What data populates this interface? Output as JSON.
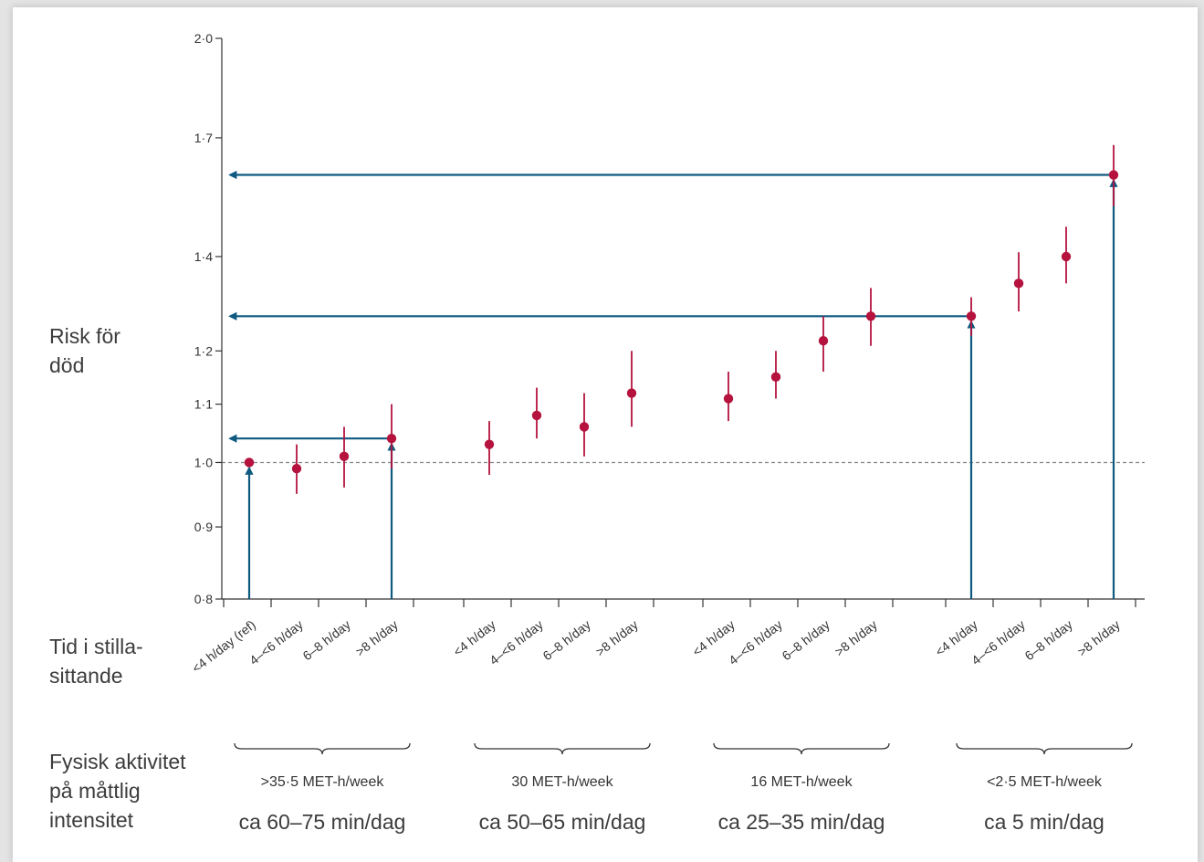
{
  "labels": {
    "y_axis": "Risk för\ndöd",
    "sitting_time": "Tid i stilla-\nsittande",
    "activity": "Fysisk aktivitet\npå måttlig\nintensitet"
  },
  "chart_data": {
    "type": "scatter",
    "y_scale": "log",
    "ylim": [
      0.8,
      2.0
    ],
    "y_ticks": [
      0.8,
      0.9,
      1.0,
      1.1,
      1.2,
      1.4,
      1.7,
      2.0
    ],
    "y_tick_labels": [
      "0·8",
      "0·9",
      "1·0",
      "1·1",
      "1·2",
      "1·4",
      "1·7",
      "2·0"
    ],
    "reference_line": 1.0,
    "colors": {
      "points": "#b5123e",
      "arrows": "#0f5a80",
      "axis": "#333333",
      "reference": "#8a8a8a"
    },
    "groups": [
      {
        "label": ">35·5 MET-h/week",
        "minutes": "ca 60–75 min/dag",
        "points": [
          {
            "category": "<4 h/day (ref)",
            "value": 1.0,
            "ci": [
              1.0,
              1.0
            ]
          },
          {
            "category": "4–<6 h/day",
            "value": 0.99,
            "ci": [
              0.95,
              1.03
            ]
          },
          {
            "category": "6–8 h/day",
            "value": 1.01,
            "ci": [
              0.96,
              1.06
            ]
          },
          {
            "category": ">8 h/day",
            "value": 1.04,
            "ci": [
              0.99,
              1.1
            ]
          }
        ]
      },
      {
        "label": "30 MET-h/week",
        "minutes": "ca 50–65 min/dag",
        "points": [
          {
            "category": "<4 h/day",
            "value": 1.03,
            "ci": [
              0.98,
              1.07
            ]
          },
          {
            "category": "4–<6 h/day",
            "value": 1.08,
            "ci": [
              1.04,
              1.13
            ]
          },
          {
            "category": "6–8 h/day",
            "value": 1.06,
            "ci": [
              1.01,
              1.12
            ]
          },
          {
            "category": ">8 h/day",
            "value": 1.12,
            "ci": [
              1.06,
              1.2
            ]
          }
        ]
      },
      {
        "label": "16 MET-h/week",
        "minutes": "ca 25–35 min/dag",
        "points": [
          {
            "category": "<4 h/day",
            "value": 1.11,
            "ci": [
              1.07,
              1.16
            ]
          },
          {
            "category": "4–<6 h/day",
            "value": 1.15,
            "ci": [
              1.11,
              1.2
            ]
          },
          {
            "category": "6–8 h/day",
            "value": 1.22,
            "ci": [
              1.16,
              1.27
            ]
          },
          {
            "category": ">8 h/day",
            "value": 1.27,
            "ci": [
              1.21,
              1.33
            ]
          }
        ]
      },
      {
        "label": "<2·5 MET-h/week",
        "minutes": "ca 5 min/dag",
        "points": [
          {
            "category": "<4 h/day",
            "value": 1.27,
            "ci": [
              1.23,
              1.31
            ]
          },
          {
            "category": "4–<6 h/day",
            "value": 1.34,
            "ci": [
              1.28,
              1.41
            ]
          },
          {
            "category": "6–8 h/day",
            "value": 1.4,
            "ci": [
              1.34,
              1.47
            ]
          },
          {
            "category": ">8 h/day",
            "value": 1.6,
            "ci": [
              1.52,
              1.68
            ]
          }
        ]
      }
    ],
    "arrows": [
      {
        "group": 0,
        "point": 0
      },
      {
        "group": 0,
        "point": 3
      },
      {
        "group": 3,
        "point": 0
      },
      {
        "group": 3,
        "point": 3
      }
    ]
  }
}
